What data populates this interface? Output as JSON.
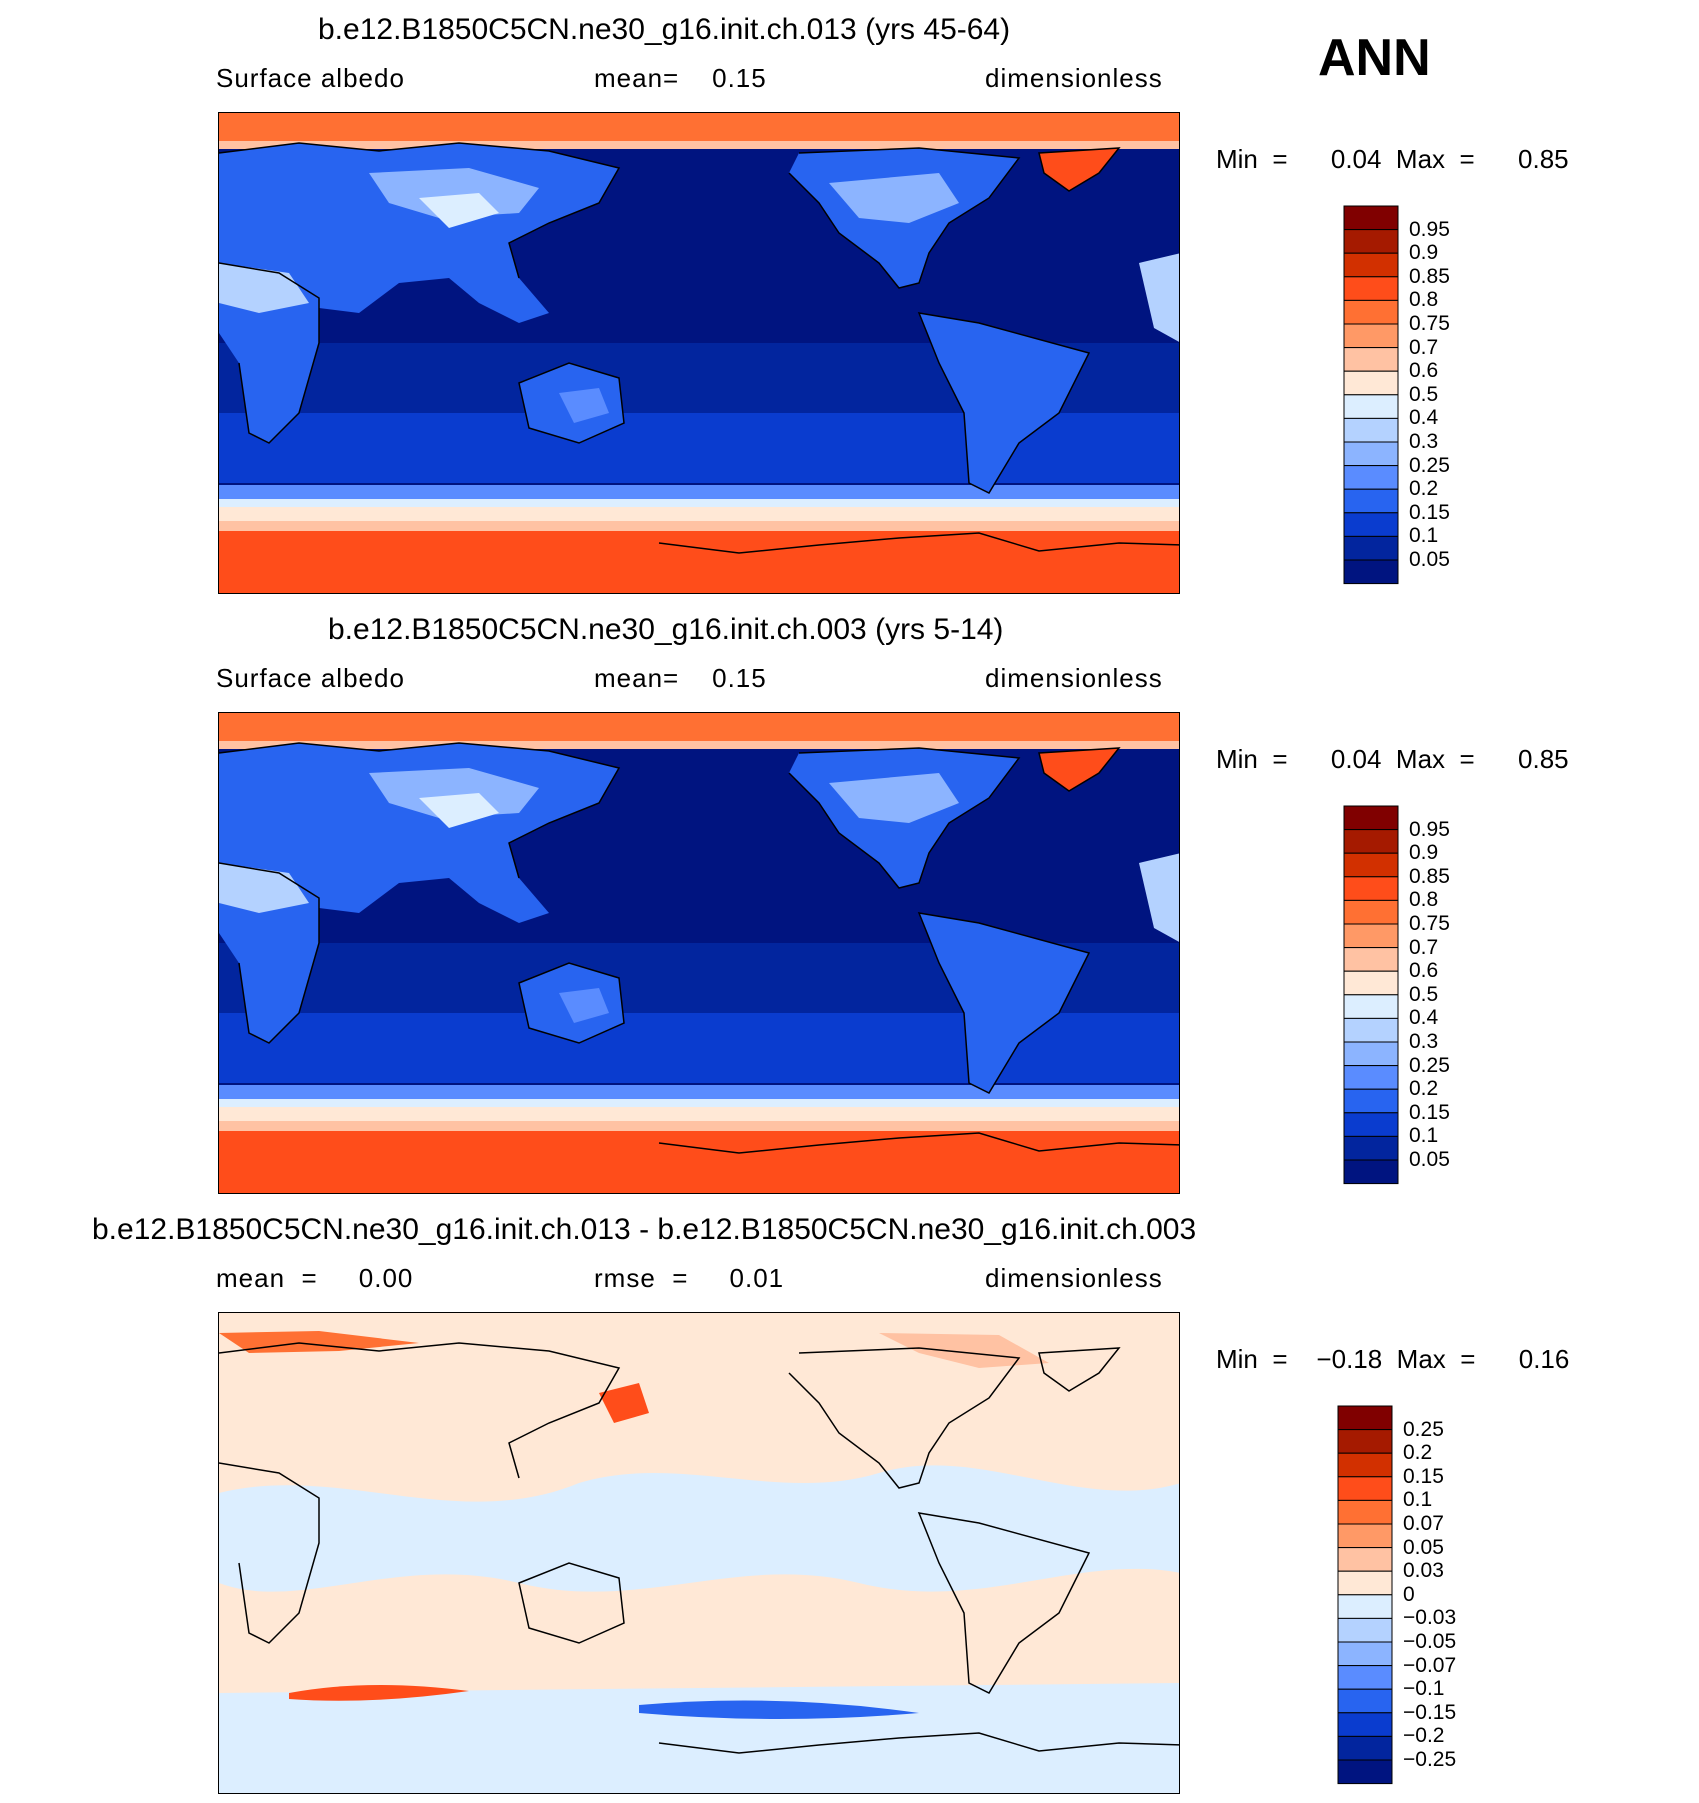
{
  "header": {
    "season": "ANN"
  },
  "panels": [
    {
      "title": "b.e12.B1850C5CN.ne30_g16.init.ch.013 (yrs 45-64)",
      "left": "Surface albedo",
      "mid": "mean=    0.15",
      "right": "dimensionless",
      "minmax": "Min  =      0.04  Max  =      0.85",
      "kind": "field"
    },
    {
      "title": "b.e12.B1850C5CN.ne30_g16.init.ch.003 (yrs 5-14)",
      "left": "Surface albedo",
      "mid": "mean=    0.15",
      "right": "dimensionless",
      "minmax": "Min  =      0.04  Max  =      0.85",
      "kind": "field"
    },
    {
      "title": "b.e12.B1850C5CN.ne30_g16.init.ch.013 - b.e12.B1850C5CN.ne30_g16.init.ch.003",
      "left": "mean  =     0.00",
      "mid": "rmse  =     0.01",
      "right": "dimensionless",
      "minmax": "Min  =    −0.18  Max  =      0.16",
      "kind": "diff"
    }
  ],
  "colorbars": {
    "field": {
      "labels": [
        "0.95",
        "0.9",
        "0.85",
        "0.8",
        "0.75",
        "0.7",
        "0.6",
        "0.5",
        "0.4",
        "0.3",
        "0.25",
        "0.2",
        "0.15",
        "0.1",
        "0.05"
      ],
      "colors": [
        "#800000",
        "#a51a00",
        "#d23000",
        "#ff4d1a",
        "#ff7033",
        "#ff9966",
        "#ffc2a3",
        "#ffe8d6",
        "#dceeff",
        "#b4d2ff",
        "#8cb4ff",
        "#5a8cff",
        "#2864f0",
        "#0a3ccf",
        "#02259e",
        "#001480"
      ]
    },
    "diff": {
      "labels": [
        "0.25",
        "0.2",
        "0.15",
        "0.1",
        "0.07",
        "0.05",
        "0.03",
        "0",
        "−0.03",
        "−0.05",
        "−0.07",
        "−0.1",
        "−0.15",
        "−0.2",
        "−0.25"
      ],
      "colors": [
        "#800000",
        "#a51a00",
        "#d23000",
        "#ff4d1a",
        "#ff7033",
        "#ff9966",
        "#ffc2a3",
        "#ffe8d6",
        "#dceeff",
        "#b4d2ff",
        "#8cb4ff",
        "#5a8cff",
        "#2864f0",
        "#0a3ccf",
        "#02259e",
        "#001480"
      ]
    }
  }
}
